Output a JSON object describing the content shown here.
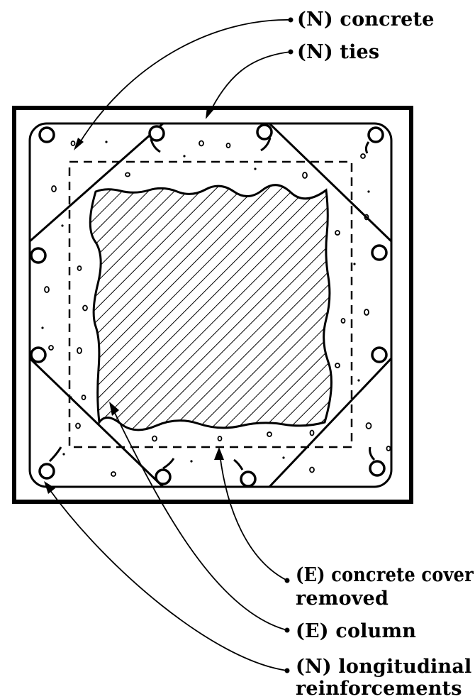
{
  "labels": {
    "new_concrete": "(N) concrete",
    "new_ties": "(N) ties",
    "cover_removed_line1": "(E) concrete cover",
    "cover_removed_line2": "removed",
    "existing_column": "(E) column",
    "longitudinal_line1": "(N) longitudinal",
    "longitudinal_line2": "reinforcements"
  },
  "colors": {
    "ink": "#000000",
    "paper": "#ffffff"
  }
}
